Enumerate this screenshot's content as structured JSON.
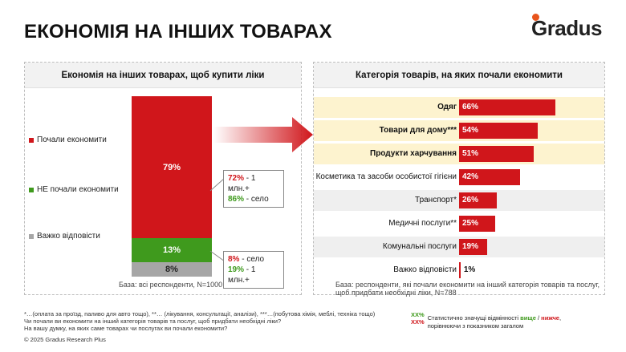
{
  "header": {
    "title": "ЕКОНОМІЯ НА ІНШИХ ТОВАРАХ",
    "logo": "Gradus",
    "accent": "#e8541c"
  },
  "left": {
    "title": "Економія на інших товарах, щоб купити ліки",
    "legend": [
      "Почали економити",
      "НЕ почали економити",
      "Важко відповісти"
    ],
    "base": "База: всі респонденти, N=1000",
    "callout_top": {
      "line1_value": "72%",
      "line1_text": " - 1 млн.+",
      "line2_value": "86%",
      "line2_text": " - село"
    },
    "callout_bottom": {
      "line1_value": "8%",
      "line1_text": " - село",
      "line2_value": "19%",
      "line2_text": " - 1 млн.+"
    }
  },
  "right": {
    "title": "Категорія товарів, на яких почали економити",
    "base": "База: респонденти, які почали економити на інший категорія товарів та послуг, щоб придбати необхідні ліки, N=788"
  },
  "chart_data": [
    {
      "type": "bar",
      "stacked": true,
      "categories": [
        "Почали економити",
        "НЕ почали економити",
        "Важко відповісти"
      ],
      "values": [
        79,
        13,
        8
      ],
      "labels": [
        "79%",
        "13%",
        "8%"
      ],
      "colors": [
        "#d0161b",
        "#3f9a1d",
        "#a6a6a6"
      ],
      "title": "Економія на інших товарах, щоб купити ліки"
    },
    {
      "type": "bar",
      "orientation": "horizontal",
      "categories": [
        "Одяг",
        "Товари для дому***",
        "Продукти харчування",
        "Косметика та засоби особистої гігієни",
        "Транспорт*",
        "Медичні послуги**",
        "Комунальні послуги",
        "Важко відповісти"
      ],
      "values": [
        66,
        54,
        51,
        42,
        26,
        25,
        19,
        1
      ],
      "labels": [
        "66%",
        "54%",
        "51%",
        "42%",
        "26%",
        "25%",
        "19%",
        "1%"
      ],
      "highlighted": [
        true,
        true,
        true,
        false,
        false,
        false,
        false,
        false
      ],
      "title": "Категорія товарів, на яких почали економити",
      "color": "#d0161b",
      "highlight_color": "#fdf3cf"
    }
  ],
  "footnotes": {
    "line1": "*…(оплата за проїзд, паливо для авто тощо), **… (лікування, консультації, аналізи), ***…(побутова хімія, меблі, техніка тощо)",
    "line2": "Чи почали ви економити на інший категорія товарів та послуг, щоб придбати необхідні ліки?",
    "line3": "На вашу думку, на яких саме товарах чи послугах ви почали економити?",
    "copyright": "© 2025 Gradus Research Plus"
  },
  "significance": {
    "xx": "XX%",
    "text_prefix": "Статистично значущі відмінності ",
    "higher": "вище",
    "sep": " / ",
    "lower": "нижче",
    "text_suffix": ",",
    "line2": "порівнюючи з показником загалом"
  }
}
